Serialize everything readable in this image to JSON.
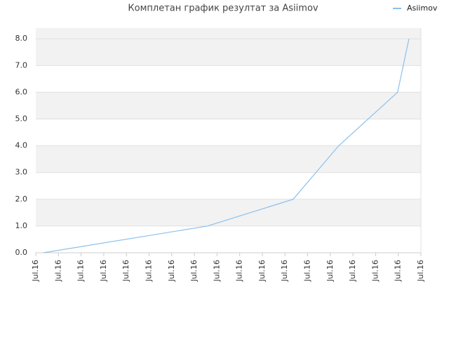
{
  "chart_data": {
    "type": "line",
    "title": "Комплетан график резултат за Asiimov",
    "x": [
      0.34,
      7.58,
      11.36,
      13.37,
      15.97,
      16.47
    ],
    "series": [
      {
        "name": "Asiimov",
        "color": "#8cc0ec",
        "values": [
          0.0,
          1.0,
          2.0,
          4.0,
          6.0,
          8.0
        ]
      }
    ],
    "xlim": [
      0,
      17
    ],
    "xticks": [
      {
        "value": 0,
        "label": "Jul.16"
      },
      {
        "value": 1,
        "label": "Jul.16"
      },
      {
        "value": 2,
        "label": "Jul.16"
      },
      {
        "value": 3,
        "label": "Jul.16"
      },
      {
        "value": 4,
        "label": "Jul.16"
      },
      {
        "value": 5,
        "label": "Jul.16"
      },
      {
        "value": 6,
        "label": "Jul.16"
      },
      {
        "value": 7,
        "label": "Jul.16"
      },
      {
        "value": 8,
        "label": "Jul.16"
      },
      {
        "value": 9,
        "label": "Jul.16"
      },
      {
        "value": 10,
        "label": "Jul.16"
      },
      {
        "value": 11,
        "label": "Jul.16"
      },
      {
        "value": 12,
        "label": "Jul.16"
      },
      {
        "value": 13,
        "label": "Jul.16"
      },
      {
        "value": 14,
        "label": "Jul.16"
      },
      {
        "value": 15,
        "label": "Jul.16"
      },
      {
        "value": 16,
        "label": "Jul.16"
      },
      {
        "value": 17,
        "label": "Jul.16"
      }
    ],
    "ylim": [
      0,
      8.4
    ],
    "yticks": [
      {
        "value": 0,
        "label": "0.0"
      },
      {
        "value": 1,
        "label": "1.0"
      },
      {
        "value": 2,
        "label": "2.0"
      },
      {
        "value": 3,
        "label": "3.0"
      },
      {
        "value": 4,
        "label": "4.0"
      },
      {
        "value": 5,
        "label": "5.0"
      },
      {
        "value": 6,
        "label": "6.0"
      },
      {
        "value": 7,
        "label": "7.0"
      },
      {
        "value": 8,
        "label": "8.0"
      }
    ],
    "grid": true,
    "legend": "top-right"
  }
}
